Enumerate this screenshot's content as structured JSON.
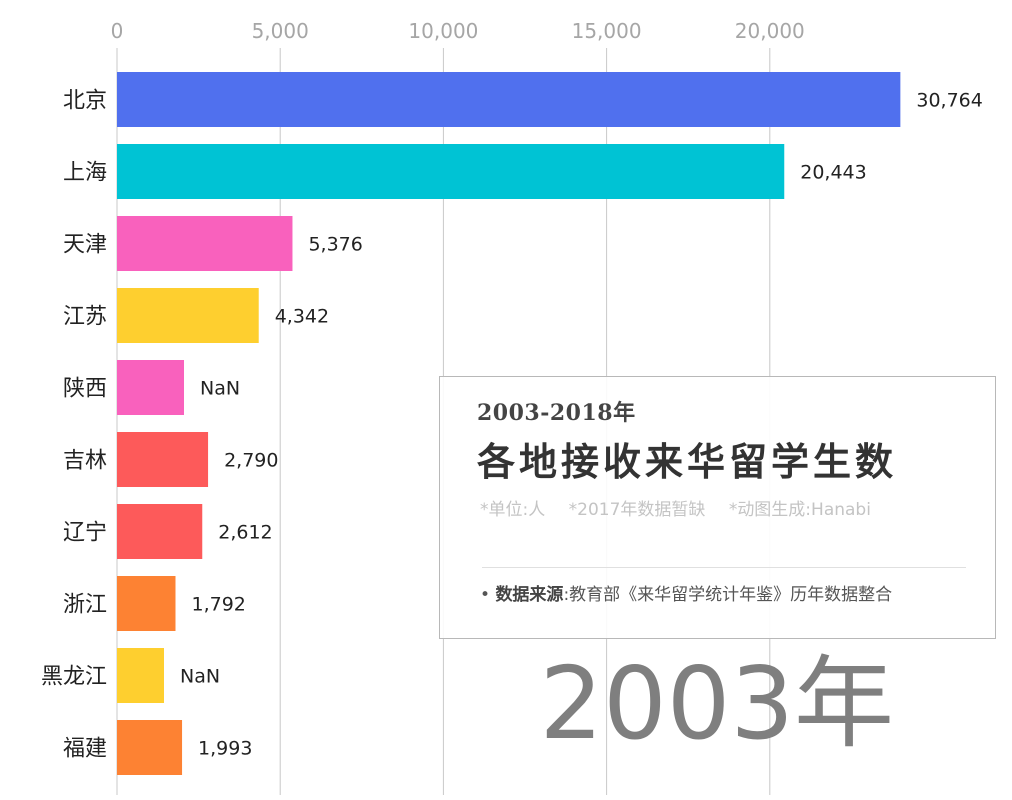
{
  "chart_data": {
    "type": "bar",
    "orientation": "horizontal",
    "categories": [
      "北京",
      "上海",
      "天津",
      "江苏",
      "陕西",
      "吉林",
      "辽宁",
      "浙江",
      "黑龙江",
      "福建"
    ],
    "values": [
      30764,
      20443,
      5376,
      4342,
      null,
      2790,
      2612,
      1792,
      null,
      1993
    ],
    "value_labels": [
      "30,764",
      "20,443",
      "5,376",
      "4,342",
      "NaN",
      "2,790",
      "2,612",
      "1,792",
      "NaN",
      "1,993"
    ],
    "colors": [
      "#5070ee",
      "#00c3d4",
      "#f961bd",
      "#fecf2f",
      "#f961bd",
      "#fd5a5a",
      "#fd5a5a",
      "#fd8233",
      "#fecf2f",
      "#fd8233"
    ],
    "xticks": [
      "0",
      "5,000",
      "10,000",
      "15,000",
      "20,000"
    ],
    "x_tick_values": [
      0,
      5000,
      10000,
      15000,
      20000
    ],
    "xlim": [
      0,
      24000
    ],
    "grid": true,
    "axis_position": "top"
  },
  "info": {
    "subtitle": "2003-2018年",
    "title": "各地接收来华留学生数",
    "notes": [
      "*单位:人",
      "*2017年数据暂缺",
      "*动图生成:Hanabi"
    ],
    "source_bullet": "•",
    "source_key": "数据来源",
    "source_text": ":教育部《来华留学统计年鉴》历年数据整合"
  },
  "year_label": "2003年"
}
